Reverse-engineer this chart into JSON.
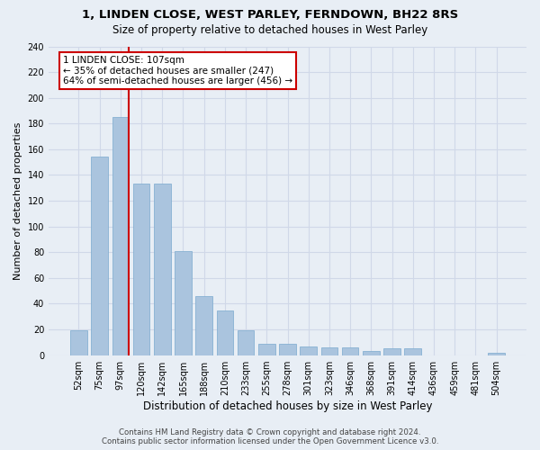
{
  "title": "1, LINDEN CLOSE, WEST PARLEY, FERNDOWN, BH22 8RS",
  "subtitle": "Size of property relative to detached houses in West Parley",
  "xlabel": "Distribution of detached houses by size in West Parley",
  "ylabel": "Number of detached properties",
  "bar_values": [
    19,
    154,
    185,
    133,
    133,
    81,
    46,
    35,
    19,
    9,
    9,
    7,
    6,
    6,
    3,
    5,
    5,
    0,
    0,
    0,
    2
  ],
  "bar_labels": [
    "52sqm",
    "75sqm",
    "97sqm",
    "120sqm",
    "142sqm",
    "165sqm",
    "188sqm",
    "210sqm",
    "233sqm",
    "255sqm",
    "278sqm",
    "301sqm",
    "323sqm",
    "346sqm",
    "368sqm",
    "391sqm",
    "414sqm",
    "436sqm",
    "459sqm",
    "481sqm",
    "504sqm"
  ],
  "bar_color": "#aac4de",
  "bar_edge_color": "#7aaace",
  "grid_color": "#d0d8e8",
  "bg_color": "#e8eef5",
  "vline_x_index": 2,
  "vline_color": "#cc0000",
  "annotation_text": "1 LINDEN CLOSE: 107sqm\n← 35% of detached houses are smaller (247)\n64% of semi-detached houses are larger (456) →",
  "annotation_box_color": "#ffffff",
  "annotation_border_color": "#cc0000",
  "ylim": [
    0,
    240
  ],
  "yticks": [
    0,
    20,
    40,
    60,
    80,
    100,
    120,
    140,
    160,
    180,
    200,
    220,
    240
  ],
  "footer_line1": "Contains HM Land Registry data © Crown copyright and database right 2024.",
  "footer_line2": "Contains public sector information licensed under the Open Government Licence v3.0."
}
